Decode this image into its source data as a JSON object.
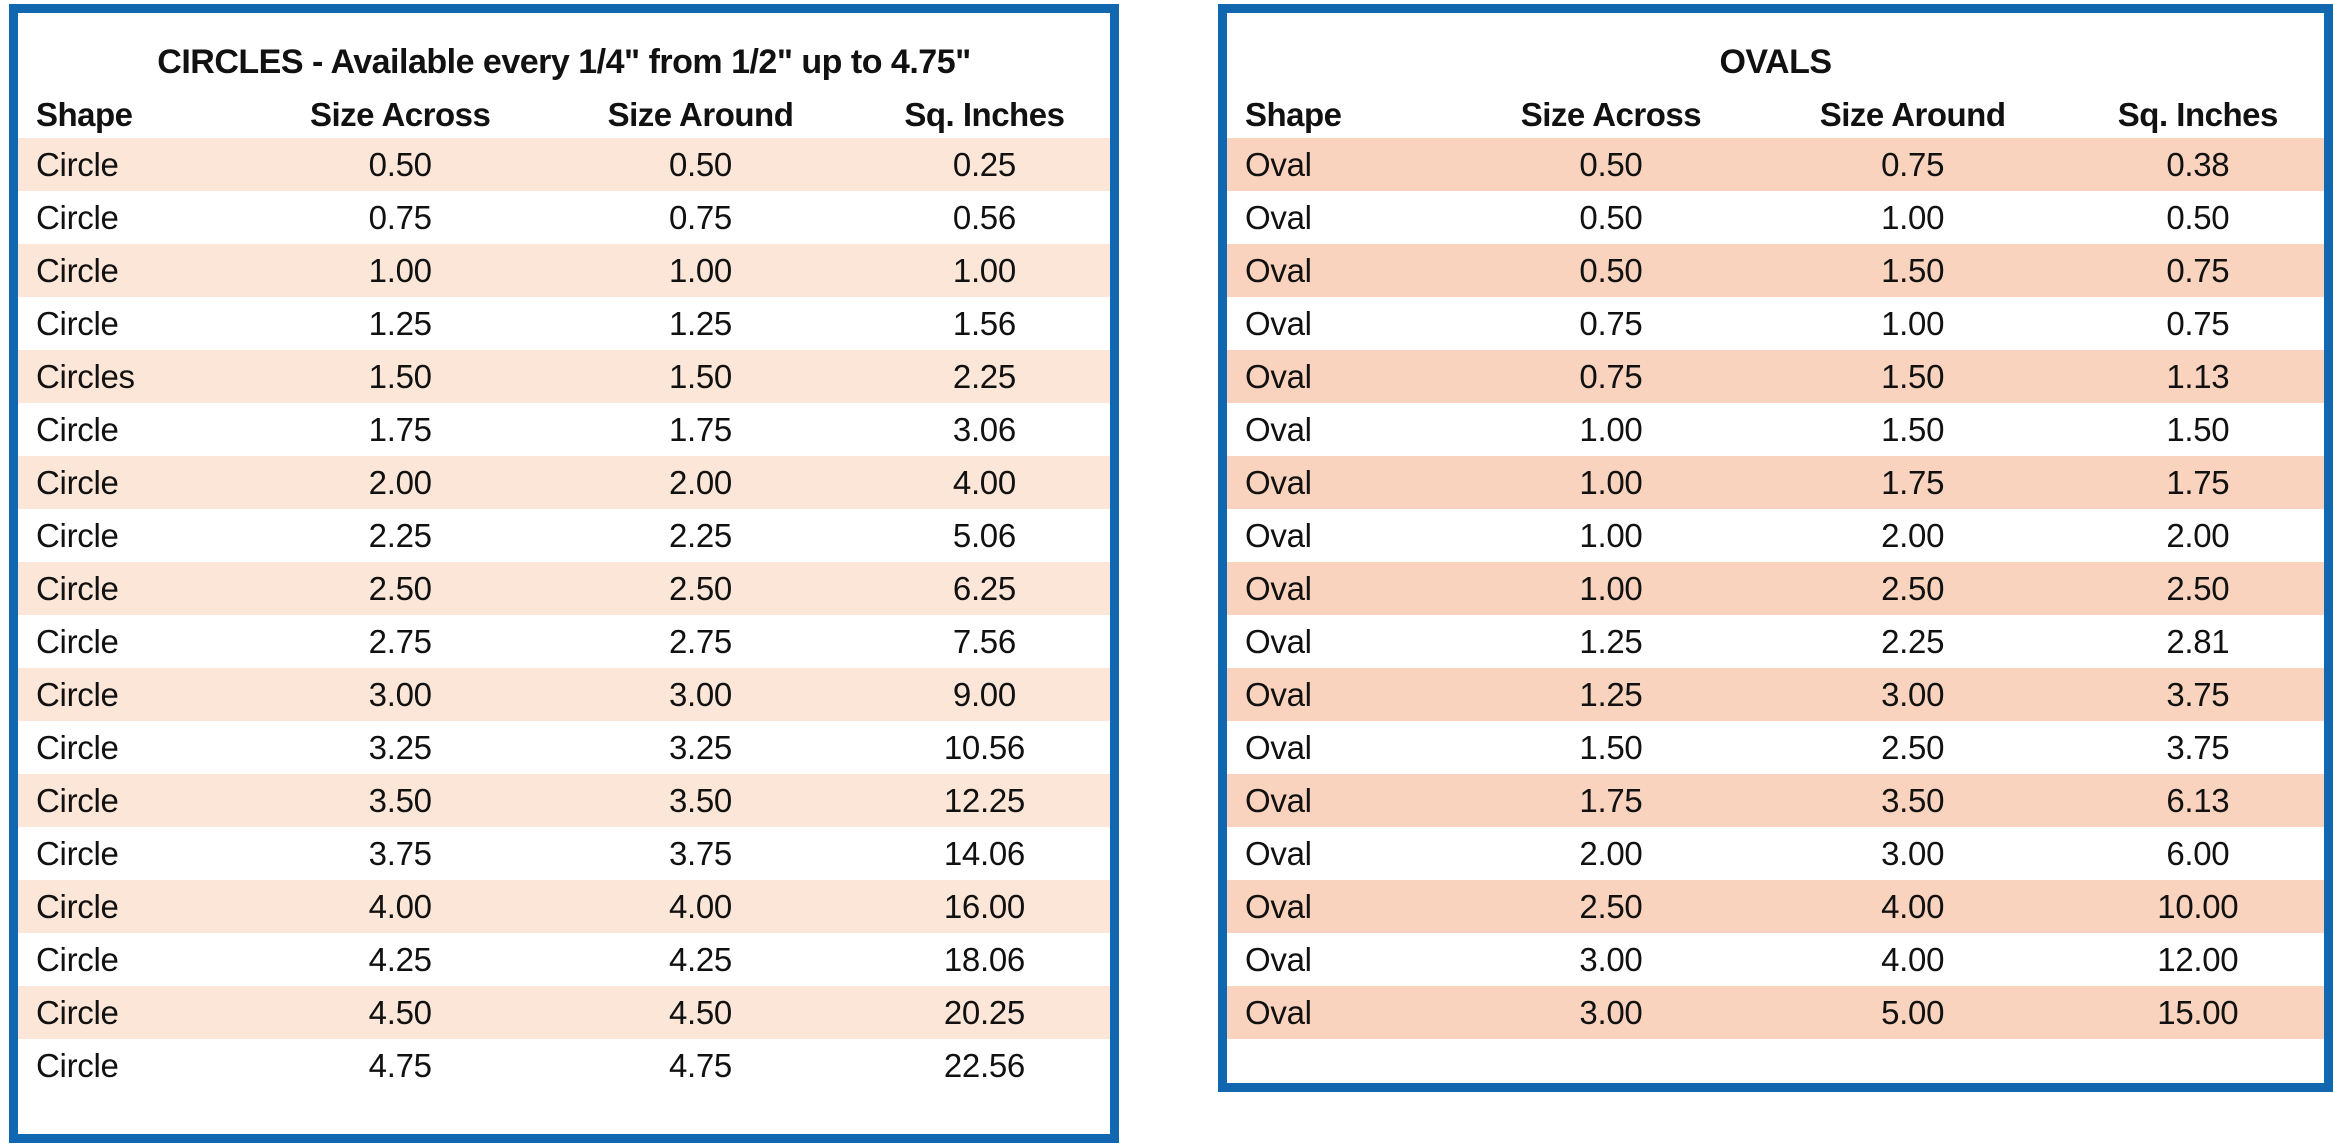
{
  "page": {
    "background": "#ffffff",
    "border_color": "#1268b0",
    "text_color": "#111111"
  },
  "chart_data": [
    {
      "type": "table",
      "title": "CIRCLES - Available every 1/4\" from 1/2\" up to 4.75\"",
      "columns": [
        "Shape",
        "Size Across",
        "Size Around",
        "Sq. Inches"
      ],
      "stripe_color": "#fce6d8",
      "border_color": "#1268b0",
      "rows": [
        [
          "Circle",
          "0.50",
          "0.50",
          "0.25"
        ],
        [
          "Circle",
          "0.75",
          "0.75",
          "0.56"
        ],
        [
          "Circle",
          "1.00",
          "1.00",
          "1.00"
        ],
        [
          "Circle",
          "1.25",
          "1.25",
          "1.56"
        ],
        [
          "Circles",
          "1.50",
          "1.50",
          "2.25"
        ],
        [
          "Circle",
          "1.75",
          "1.75",
          "3.06"
        ],
        [
          "Circle",
          "2.00",
          "2.00",
          "4.00"
        ],
        [
          "Circle",
          "2.25",
          "2.25",
          "5.06"
        ],
        [
          "Circle",
          "2.50",
          "2.50",
          "6.25"
        ],
        [
          "Circle",
          "2.75",
          "2.75",
          "7.56"
        ],
        [
          "Circle",
          "3.00",
          "3.00",
          "9.00"
        ],
        [
          "Circle",
          "3.25",
          "3.25",
          "10.56"
        ],
        [
          "Circle",
          "3.50",
          "3.50",
          "12.25"
        ],
        [
          "Circle",
          "3.75",
          "3.75",
          "14.06"
        ],
        [
          "Circle",
          "4.00",
          "4.00",
          "16.00"
        ],
        [
          "Circle",
          "4.25",
          "4.25",
          "18.06"
        ],
        [
          "Circle",
          "4.50",
          "4.50",
          "20.25"
        ],
        [
          "Circle",
          "4.75",
          "4.75",
          "22.56"
        ]
      ]
    },
    {
      "type": "table",
      "title": "OVALS",
      "columns": [
        "Shape",
        "Size Across",
        "Size Around",
        "Sq. Inches"
      ],
      "stripe_color": "#f9d3bd",
      "border_color": "#1268b0",
      "rows": [
        [
          "Oval",
          "0.50",
          "0.75",
          "0.38"
        ],
        [
          "Oval",
          "0.50",
          "1.00",
          "0.50"
        ],
        [
          "Oval",
          "0.50",
          "1.50",
          "0.75"
        ],
        [
          "Oval",
          "0.75",
          "1.00",
          "0.75"
        ],
        [
          "Oval",
          "0.75",
          "1.50",
          "1.13"
        ],
        [
          "Oval",
          "1.00",
          "1.50",
          "1.50"
        ],
        [
          "Oval",
          "1.00",
          "1.75",
          "1.75"
        ],
        [
          "Oval",
          "1.00",
          "2.00",
          "2.00"
        ],
        [
          "Oval",
          "1.00",
          "2.50",
          "2.50"
        ],
        [
          "Oval",
          "1.25",
          "2.25",
          "2.81"
        ],
        [
          "Oval",
          "1.25",
          "3.00",
          "3.75"
        ],
        [
          "Oval",
          "1.50",
          "2.50",
          "3.75"
        ],
        [
          "Oval",
          "1.75",
          "3.50",
          "6.13"
        ],
        [
          "Oval",
          "2.00",
          "3.00",
          "6.00"
        ],
        [
          "Oval",
          "2.50",
          "4.00",
          "10.00"
        ],
        [
          "Oval",
          "3.00",
          "4.00",
          "12.00"
        ],
        [
          "Oval",
          "3.00",
          "5.00",
          "15.00"
        ]
      ]
    }
  ]
}
